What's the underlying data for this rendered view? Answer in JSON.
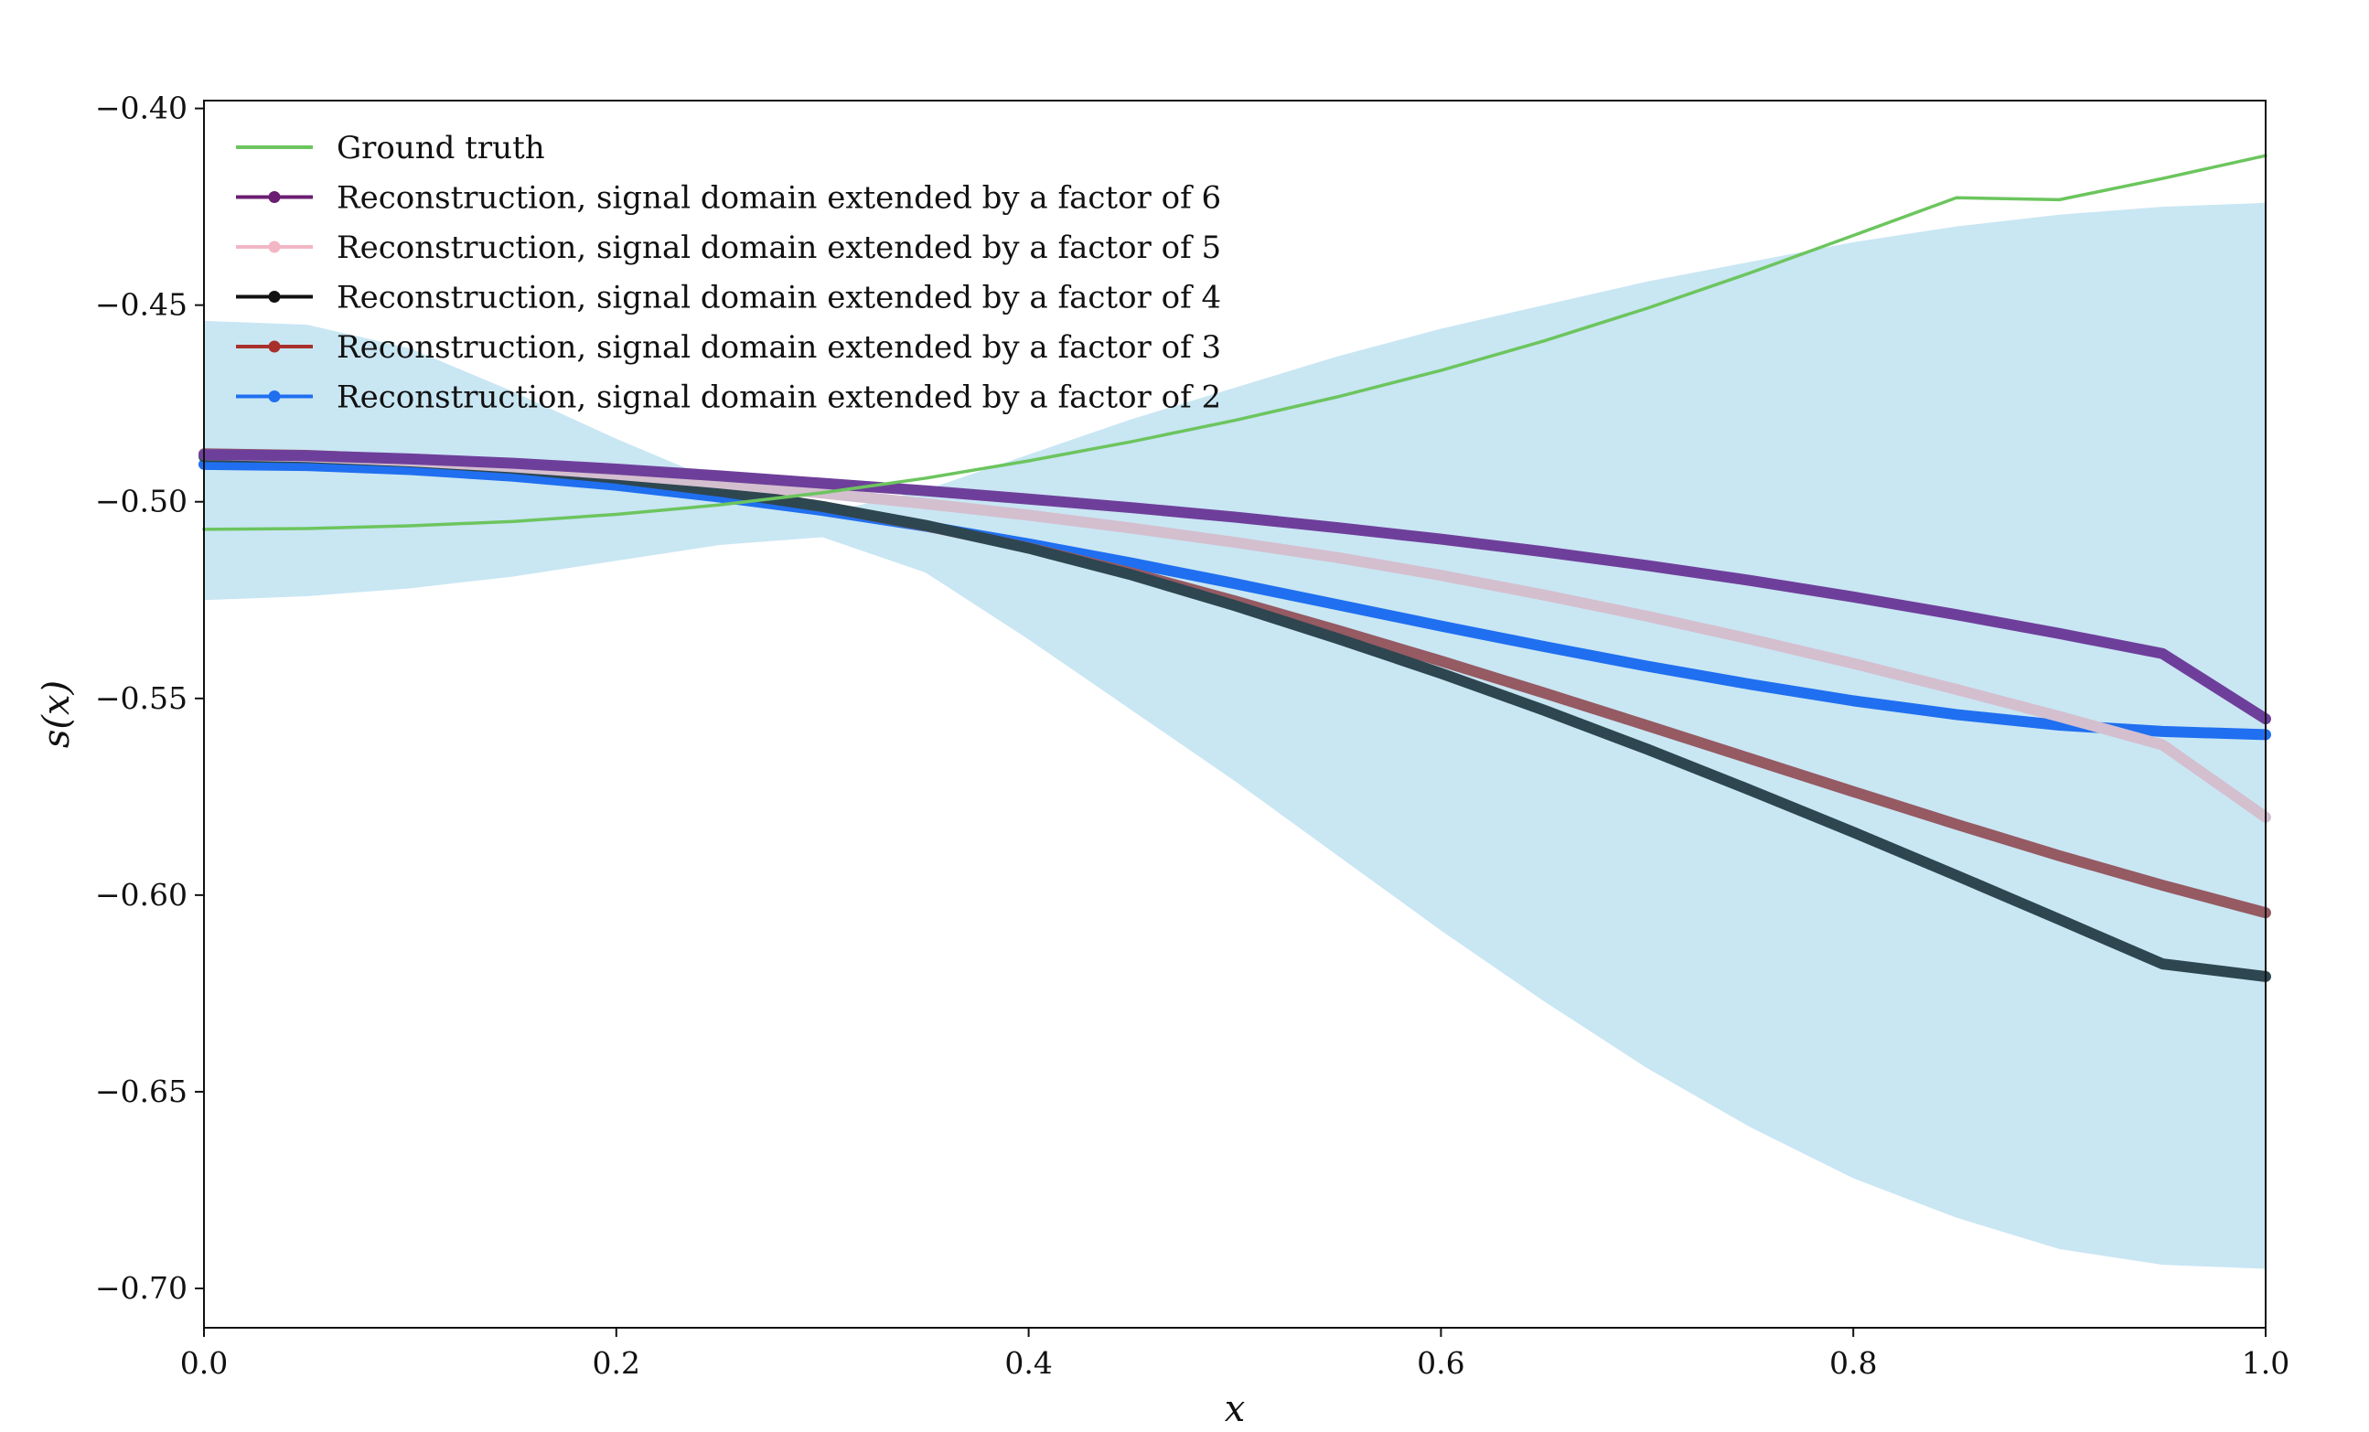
{
  "chart_data": {
    "type": "line",
    "title": "",
    "xlabel": "x",
    "ylabel": "s(x)",
    "xlim": [
      0.0,
      1.0
    ],
    "ylim": [
      -0.71,
      -0.398
    ],
    "xticks": [
      0.0,
      0.2,
      0.4,
      0.6,
      0.8,
      1.0
    ],
    "xtick_labels": [
      "0.0",
      "0.2",
      "0.4",
      "0.6",
      "0.8",
      "1.0"
    ],
    "yticks": [
      -0.4,
      -0.45,
      -0.5,
      -0.55,
      -0.6,
      -0.65,
      -0.7
    ],
    "ytick_labels": [
      "−0.40",
      "−0.45",
      "−0.50",
      "−0.55",
      "−0.60",
      "−0.65",
      "−0.70"
    ],
    "grid": false,
    "legend_position": "top-left",
    "uncertainty_band": {
      "color": "#c9e6f3",
      "x": [
        0.0,
        0.05,
        0.1,
        0.15,
        0.2,
        0.25,
        0.3,
        0.35,
        0.4,
        0.45,
        0.5,
        0.55,
        0.6,
        0.65,
        0.7,
        0.75,
        0.8,
        0.85,
        0.9,
        0.95,
        1.0
      ],
      "upper": [
        -0.454,
        -0.455,
        -0.461,
        -0.472,
        -0.484,
        -0.495,
        -0.503,
        -0.497,
        -0.488,
        -0.479,
        -0.471,
        -0.463,
        -0.456,
        -0.45,
        -0.444,
        -0.439,
        -0.434,
        -0.43,
        -0.427,
        -0.425,
        -0.424
      ],
      "lower": [
        -0.525,
        -0.524,
        -0.522,
        -0.519,
        -0.515,
        -0.511,
        -0.509,
        -0.518,
        -0.535,
        -0.553,
        -0.571,
        -0.59,
        -0.609,
        -0.627,
        -0.644,
        -0.659,
        -0.672,
        -0.682,
        -0.69,
        -0.694,
        -0.695
      ]
    },
    "x": [
      0.0,
      0.05,
      0.1,
      0.15,
      0.2,
      0.25,
      0.3,
      0.35,
      0.4,
      0.45,
      0.5,
      0.55,
      0.6,
      0.65,
      0.7,
      0.75,
      0.8,
      0.85,
      0.9,
      0.95,
      1.0
    ],
    "series": [
      {
        "name": "Ground truth",
        "color": "#6cc55e",
        "marker": false,
        "values": [
          -0.507,
          -0.5068,
          -0.5061,
          -0.505,
          -0.5032,
          -0.5008,
          -0.4977,
          -0.494,
          -0.4896,
          -0.4847,
          -0.4793,
          -0.4733,
          -0.4666,
          -0.4591,
          -0.4508,
          -0.4418,
          -0.4323,
          -0.4227,
          -0.4232,
          -0.4178,
          -0.412
        ]
      },
      {
        "name": "Reconstruction, signal domain extended by a factor of 6",
        "color": "#6b1d72",
        "draw_color": "#6e3f9a",
        "marker": true,
        "values": [
          -0.488,
          -0.4883,
          -0.4891,
          -0.4902,
          -0.4917,
          -0.4934,
          -0.4953,
          -0.4972,
          -0.4993,
          -0.5015,
          -0.5039,
          -0.5066,
          -0.5095,
          -0.5127,
          -0.5162,
          -0.52,
          -0.5242,
          -0.5287,
          -0.5335,
          -0.5386,
          -0.5552
        ]
      },
      {
        "name": "Reconstruction, signal domain extended by a factor of 5",
        "color": "#f2b6c4",
        "draw_color": "#d4bfcf",
        "marker": true,
        "values": [
          -0.488,
          -0.4885,
          -0.4896,
          -0.4911,
          -0.493,
          -0.4952,
          -0.4978,
          -0.5005,
          -0.5034,
          -0.5067,
          -0.5103,
          -0.5142,
          -0.5187,
          -0.5237,
          -0.5291,
          -0.5349,
          -0.5411,
          -0.5477,
          -0.5546,
          -0.5618,
          -0.5802
        ]
      },
      {
        "name": "Reconstruction, signal domain extended by a factor of 4",
        "color": "#111111",
        "draw_color": "#2d4650",
        "marker": true,
        "values": [
          -0.4885,
          -0.4888,
          -0.4898,
          -0.4915,
          -0.494,
          -0.4973,
          -0.5012,
          -0.506,
          -0.5118,
          -0.5186,
          -0.5264,
          -0.5348,
          -0.5436,
          -0.553,
          -0.5629,
          -0.5733,
          -0.584,
          -0.595,
          -0.6062,
          -0.6175,
          -0.6207
        ]
      },
      {
        "name": "Reconstruction, signal domain extended by a factor of 3",
        "color": "#a8302b",
        "draw_color": "#955a62",
        "marker": true,
        "values": [
          -0.4878,
          -0.4882,
          -0.4893,
          -0.4912,
          -0.4938,
          -0.4972,
          -0.5012,
          -0.5061,
          -0.5117,
          -0.5181,
          -0.5252,
          -0.5327,
          -0.5405,
          -0.5486,
          -0.5569,
          -0.5653,
          -0.5737,
          -0.582,
          -0.59,
          -0.5975,
          -0.6045
        ]
      },
      {
        "name": "Reconstruction, signal domain extended by a factor of 2",
        "color": "#1f6ff0",
        "draw_color": "#1f6ff0",
        "marker": true,
        "values": [
          -0.4905,
          -0.4908,
          -0.4918,
          -0.4935,
          -0.4958,
          -0.4988,
          -0.5022,
          -0.5062,
          -0.5107,
          -0.5156,
          -0.5208,
          -0.5262,
          -0.5316,
          -0.5368,
          -0.5418,
          -0.5464,
          -0.5506,
          -0.5541,
          -0.5568,
          -0.5584,
          -0.5592
        ]
      }
    ]
  }
}
